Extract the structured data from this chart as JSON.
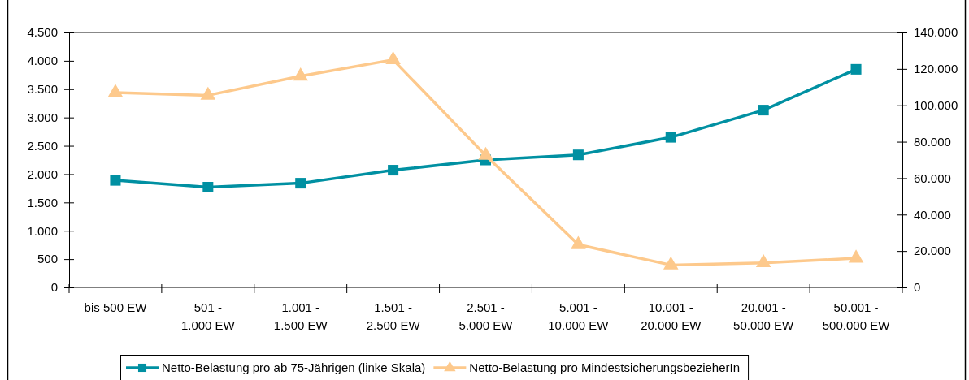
{
  "chart_data": {
    "type": "line",
    "categories": [
      "bis 500 EW",
      "501 -\n1.000 EW",
      "1.001 -\n1.500 EW",
      "1.501 -\n2.500 EW",
      "2.501 -\n5.000 EW",
      "5.001 -\n10.000 EW",
      "10.001 -\n20.000 EW",
      "20.001 -\n50.000 EW",
      "50.001 -\n500.000 EW"
    ],
    "series": [
      {
        "name": "Netto-Belastung pro ab 75-Jährigen (linke Skala)",
        "color": "#0090a2",
        "marker": "square",
        "values": [
          1890,
          1770,
          1840,
          2070,
          2250,
          2340,
          2650,
          3130,
          3850
        ]
      },
      {
        "name": "Netto-Belastung pro MindestsicherungsbezieherIn",
        "color": "#fdc98c",
        "marker": "triangle",
        "axis": "y2",
        "values": [
          107000,
          105500,
          116000,
          125000,
          72500,
          23500,
          12300,
          13500,
          16000
        ]
      }
    ],
    "ylim": [
      0,
      4500
    ],
    "yticks": [
      0,
      500,
      {
        "value": 1000,
        "label": "1.000"
      },
      {
        "value": 1500,
        "label": "1.500"
      },
      {
        "value": 2000,
        "label": "2.000"
      },
      {
        "value": 2500,
        "label": "2.500"
      },
      {
        "value": 3000,
        "label": "3.000"
      },
      {
        "value": 3500,
        "label": "3.500"
      },
      {
        "value": 4000,
        "label": "4.000"
      },
      {
        "value": 4500,
        "label": "4.500"
      }
    ],
    "y2lim": [
      0,
      140000
    ],
    "y2ticks": [
      0,
      {
        "value": 20000,
        "label": "20.000"
      },
      {
        "value": 40000,
        "label": "40.000"
      },
      {
        "value": 60000,
        "label": "60.000"
      },
      {
        "value": 80000,
        "label": "80.000"
      },
      {
        "value": 100000,
        "label": "100.000"
      },
      {
        "value": 120000,
        "label": "120.000"
      },
      {
        "value": 140000,
        "label": "140.000"
      }
    ],
    "legend": "bottom"
  }
}
